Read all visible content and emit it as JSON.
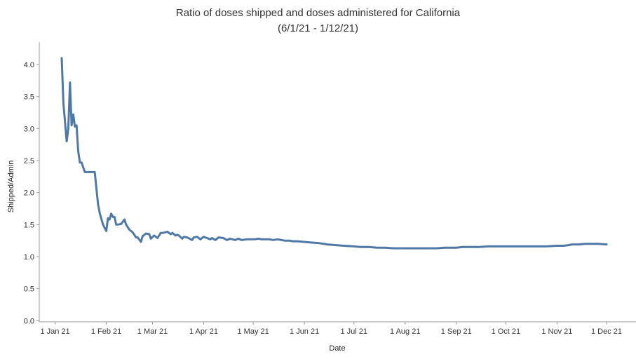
{
  "chart_data": {
    "type": "line",
    "title": "Ratio of doses shipped and doses administered for California",
    "subtitle": "(6/1/21 - 1/12/21)",
    "xlabel": "Date",
    "ylabel": "Shipped/Admin",
    "xlim": [
      "2021-01-01",
      "2021-12-20"
    ],
    "ylim": [
      -0.1,
      4.25
    ],
    "x_ticks": [
      {
        "date": "2021-01-01",
        "label": "1 Jan 21"
      },
      {
        "date": "2021-02-01",
        "label": "1 Feb 21"
      },
      {
        "date": "2021-03-01",
        "label": "1 Mar 21"
      },
      {
        "date": "2021-04-01",
        "label": "1 Apr 21"
      },
      {
        "date": "2021-05-01",
        "label": "1 May 21"
      },
      {
        "date": "2021-06-01",
        "label": "1 Jun 21"
      },
      {
        "date": "2021-07-01",
        "label": "1 Jul 21"
      },
      {
        "date": "2021-08-01",
        "label": "1 Aug 21"
      },
      {
        "date": "2021-09-01",
        "label": "1 Sep 21"
      },
      {
        "date": "2021-10-01",
        "label": "1 Oct 21"
      },
      {
        "date": "2021-11-01",
        "label": "1 Nov 21"
      },
      {
        "date": "2021-12-01",
        "label": "1 Dec 21"
      }
    ],
    "y_ticks": [
      {
        "value": 0.0,
        "label": "0.0"
      },
      {
        "value": 0.5,
        "label": "0.5"
      },
      {
        "value": 1.0,
        "label": "1.0"
      },
      {
        "value": 1.5,
        "label": "1.5"
      },
      {
        "value": 2.0,
        "label": "2.0"
      },
      {
        "value": 2.5,
        "label": "2.5"
      },
      {
        "value": 3.0,
        "label": "3.0"
      },
      {
        "value": 3.5,
        "label": "3.5"
      },
      {
        "value": 4.0,
        "label": "4.0"
      }
    ],
    "grid": false,
    "line_color": "#4e79a7",
    "series": [
      {
        "x": [
          "2021-01-05",
          "2021-01-06",
          "2021-01-08",
          "2021-01-09",
          "2021-01-10",
          "2021-01-11",
          "2021-01-12",
          "2021-01-13",
          "2021-01-14",
          "2021-01-15",
          "2021-01-16",
          "2021-01-17",
          "2021-01-19",
          "2021-01-20",
          "2021-01-21",
          "2021-01-25",
          "2021-01-27",
          "2021-01-28",
          "2021-01-30",
          "2021-02-01",
          "2021-02-02",
          "2021-02-03",
          "2021-02-04",
          "2021-02-05",
          "2021-02-06",
          "2021-02-07",
          "2021-02-08",
          "2021-02-10",
          "2021-02-12",
          "2021-02-13",
          "2021-02-15",
          "2021-02-17",
          "2021-02-19",
          "2021-02-20",
          "2021-02-22",
          "2021-02-23",
          "2021-02-25",
          "2021-02-27",
          "2021-02-28",
          "2021-03-02",
          "2021-03-04",
          "2021-03-06",
          "2021-03-07",
          "2021-03-09",
          "2021-03-10",
          "2021-03-12",
          "2021-03-13",
          "2021-03-15",
          "2021-03-16",
          "2021-03-17",
          "2021-03-19",
          "2021-03-20",
          "2021-03-22",
          "2021-03-25",
          "2021-03-26",
          "2021-03-28",
          "2021-03-30",
          "2021-04-01",
          "2021-04-03",
          "2021-04-05",
          "2021-04-06",
          "2021-04-08",
          "2021-04-10",
          "2021-04-13",
          "2021-04-15",
          "2021-04-17",
          "2021-04-20",
          "2021-04-22",
          "2021-04-24",
          "2021-04-27",
          "2021-04-29",
          "2021-05-02",
          "2021-05-04",
          "2021-05-06",
          "2021-05-09",
          "2021-05-11",
          "2021-05-13",
          "2021-05-16",
          "2021-05-18",
          "2021-05-20",
          "2021-05-23",
          "2021-05-25",
          "2021-05-28",
          "2021-06-01",
          "2021-06-05",
          "2021-06-10",
          "2021-06-15",
          "2021-06-20",
          "2021-06-25",
          "2021-07-01",
          "2021-07-05",
          "2021-07-10",
          "2021-07-15",
          "2021-07-20",
          "2021-07-25",
          "2021-08-01",
          "2021-08-05",
          "2021-08-10",
          "2021-08-15",
          "2021-08-20",
          "2021-08-25",
          "2021-09-01",
          "2021-09-05",
          "2021-09-10",
          "2021-09-15",
          "2021-09-20",
          "2021-09-25",
          "2021-10-01",
          "2021-10-05",
          "2021-10-10",
          "2021-10-15",
          "2021-10-20",
          "2021-10-25",
          "2021-11-01",
          "2021-11-05",
          "2021-11-08",
          "2021-11-10",
          "2021-11-14",
          "2021-11-18",
          "2021-11-22",
          "2021-11-26",
          "2021-12-01"
        ],
        "y": [
          4.1,
          3.4,
          2.8,
          3.0,
          3.72,
          3.05,
          3.22,
          3.03,
          3.05,
          2.65,
          2.47,
          2.47,
          2.32,
          2.32,
          2.32,
          2.32,
          1.82,
          1.68,
          1.5,
          1.4,
          1.6,
          1.58,
          1.67,
          1.62,
          1.62,
          1.5,
          1.5,
          1.51,
          1.58,
          1.5,
          1.42,
          1.38,
          1.3,
          1.3,
          1.23,
          1.32,
          1.36,
          1.35,
          1.28,
          1.33,
          1.29,
          1.37,
          1.37,
          1.38,
          1.39,
          1.35,
          1.37,
          1.33,
          1.34,
          1.33,
          1.28,
          1.31,
          1.3,
          1.26,
          1.3,
          1.31,
          1.27,
          1.31,
          1.29,
          1.27,
          1.29,
          1.26,
          1.3,
          1.29,
          1.26,
          1.28,
          1.26,
          1.28,
          1.26,
          1.27,
          1.27,
          1.27,
          1.28,
          1.27,
          1.27,
          1.27,
          1.26,
          1.27,
          1.26,
          1.25,
          1.25,
          1.24,
          1.24,
          1.23,
          1.22,
          1.21,
          1.19,
          1.18,
          1.17,
          1.16,
          1.15,
          1.15,
          1.14,
          1.14,
          1.13,
          1.13,
          1.13,
          1.13,
          1.13,
          1.13,
          1.14,
          1.14,
          1.15,
          1.15,
          1.15,
          1.16,
          1.16,
          1.16,
          1.16,
          1.16,
          1.16,
          1.16,
          1.16,
          1.17,
          1.17,
          1.18,
          1.19,
          1.19,
          1.2,
          1.2,
          1.2,
          1.19
        ]
      }
    ]
  }
}
